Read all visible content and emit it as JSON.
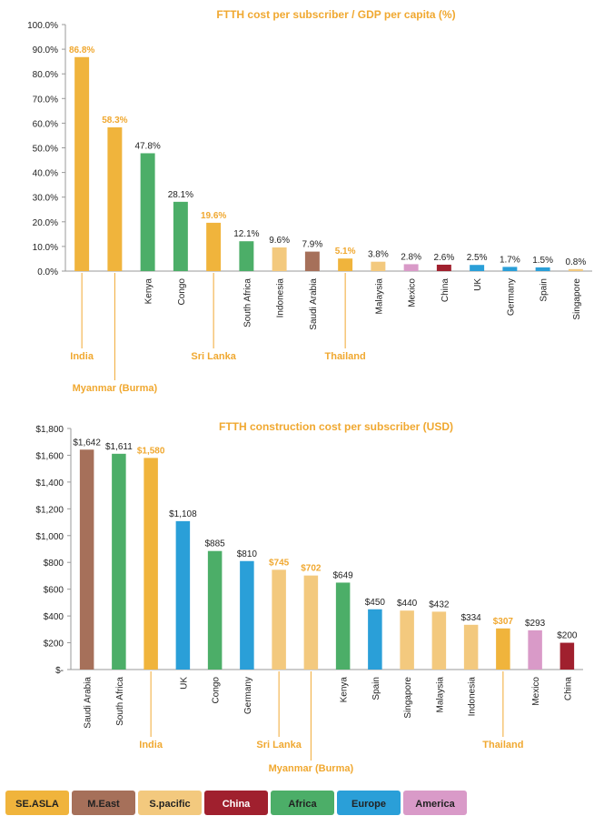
{
  "chart_data": [
    {
      "type": "bar",
      "title": "FTTH cost per subscriber / GDP per capita (%)",
      "categories": [
        "India",
        "Myanmar (Burma)",
        "Kenya",
        "Congo",
        "Sri Lanka",
        "South Africa",
        "Indonesia",
        "Saudi Arabia",
        "Thailand",
        "Malaysia",
        "Mexico",
        "China",
        "UK",
        "Germany",
        "Spain",
        "Singapore"
      ],
      "values": [
        86.8,
        58.3,
        47.8,
        28.1,
        19.6,
        12.1,
        9.6,
        7.9,
        5.1,
        3.8,
        2.8,
        2.6,
        2.5,
        1.7,
        1.5,
        0.8
      ],
      "value_labels": [
        "86.8%",
        "58.3%",
        "47.8%",
        "28.1%",
        "19.6%",
        "12.1%",
        "9.6%",
        "7.9%",
        "5.1%",
        "3.8%",
        "2.8%",
        "2.6%",
        "2.5%",
        "1.7%",
        "1.5%",
        "0.8%"
      ],
      "colors": [
        "#f0b43c",
        "#f0b43c",
        "#4cae68",
        "#4cae68",
        "#f0b43c",
        "#4cae68",
        "#f3c97e",
        "#a6705a",
        "#f0b43c",
        "#f3c97e",
        "#d99ac8",
        "#a0202e",
        "#2a9fd8",
        "#2a9fd8",
        "#2a9fd8",
        "#f3c97e"
      ],
      "label_colors": [
        "#f0a830",
        "#f0a830",
        "#222222",
        "#222222",
        "#f0a830",
        "#222222",
        "#222222",
        "#222222",
        "#f0a830",
        "#222222",
        "#222222",
        "#222222",
        "#222222",
        "#222222",
        "#222222",
        "#222222"
      ],
      "ylim": [
        0,
        100
      ],
      "yticks": [
        {
          "value": 0,
          "label": "0.0%"
        },
        {
          "value": 10,
          "label": "10.0%"
        },
        {
          "value": 20,
          "label": "20.0%"
        },
        {
          "value": 30,
          "label": "30.0%"
        },
        {
          "value": 40,
          "label": "40.0%"
        },
        {
          "value": 50,
          "label": "50.0%"
        },
        {
          "value": 60,
          "label": "60.0%"
        },
        {
          "value": 70,
          "label": "70.0%"
        },
        {
          "value": 80,
          "label": "80.0%"
        },
        {
          "value": 90,
          "label": "90.0%"
        },
        {
          "value": 100,
          "label": "100.0%"
        }
      ]
    },
    {
      "type": "bar",
      "title": "FTTH construction cost per subscriber  (USD)",
      "categories": [
        "Saudi Arabia",
        "South Africa",
        "India",
        "UK",
        "Congo",
        "Germany",
        "Sri Lanka",
        "Myanmar (Burma)",
        "Kenya",
        "Spain",
        "Singapore",
        "Malaysia",
        "Indonesia",
        "Thailand",
        "Mexico",
        "China"
      ],
      "values": [
        1642,
        1611,
        1580,
        1108,
        885,
        810,
        745,
        702,
        649,
        450,
        440,
        432,
        334,
        307,
        293,
        200
      ],
      "value_labels": [
        "$1,642",
        "$1,611",
        "$1,580",
        "$1,108",
        "$885",
        "$810",
        "$745",
        "$702",
        "$649",
        "$450",
        "$440",
        "$432",
        "$334",
        "$307",
        "$293",
        "$200"
      ],
      "colors": [
        "#a6705a",
        "#4cae68",
        "#f0b43c",
        "#2a9fd8",
        "#4cae68",
        "#2a9fd8",
        "#f3c97e",
        "#f3c97e",
        "#4cae68",
        "#2a9fd8",
        "#f3c97e",
        "#f3c97e",
        "#f3c97e",
        "#f0b43c",
        "#d99ac8",
        "#a0202e"
      ],
      "label_colors": [
        "#222222",
        "#222222",
        "#f0a830",
        "#222222",
        "#222222",
        "#222222",
        "#f0a830",
        "#f0a830",
        "#222222",
        "#222222",
        "#222222",
        "#222222",
        "#222222",
        "#f0a830",
        "#222222",
        "#222222"
      ],
      "ylim": [
        0,
        1800
      ],
      "yticks": [
        {
          "value": 0,
          "label": "$-"
        },
        {
          "value": 200,
          "label": "$200"
        },
        {
          "value": 400,
          "label": "$400"
        },
        {
          "value": 600,
          "label": "$600"
        },
        {
          "value": 800,
          "label": "$800"
        },
        {
          "value": 1000,
          "label": "$1,000"
        },
        {
          "value": 1200,
          "label": "$1,200"
        },
        {
          "value": 1400,
          "label": "$1,400"
        },
        {
          "value": 1600,
          "label": "$1,600"
        },
        {
          "value": 1800,
          "label": "$1,800"
        }
      ]
    }
  ],
  "legend": [
    {
      "name": "SE.ASLA",
      "color": "#f0b43c"
    },
    {
      "name": "M.East",
      "color": "#a6705a"
    },
    {
      "name": "S.pacific",
      "color": "#f3c97e"
    },
    {
      "name": "China",
      "color": "#a0202e"
    },
    {
      "name": "Africa",
      "color": "#4cae68"
    },
    {
      "name": "Europe",
      "color": "#2a9fd8"
    },
    {
      "name": "America",
      "color": "#d99ac8"
    }
  ]
}
